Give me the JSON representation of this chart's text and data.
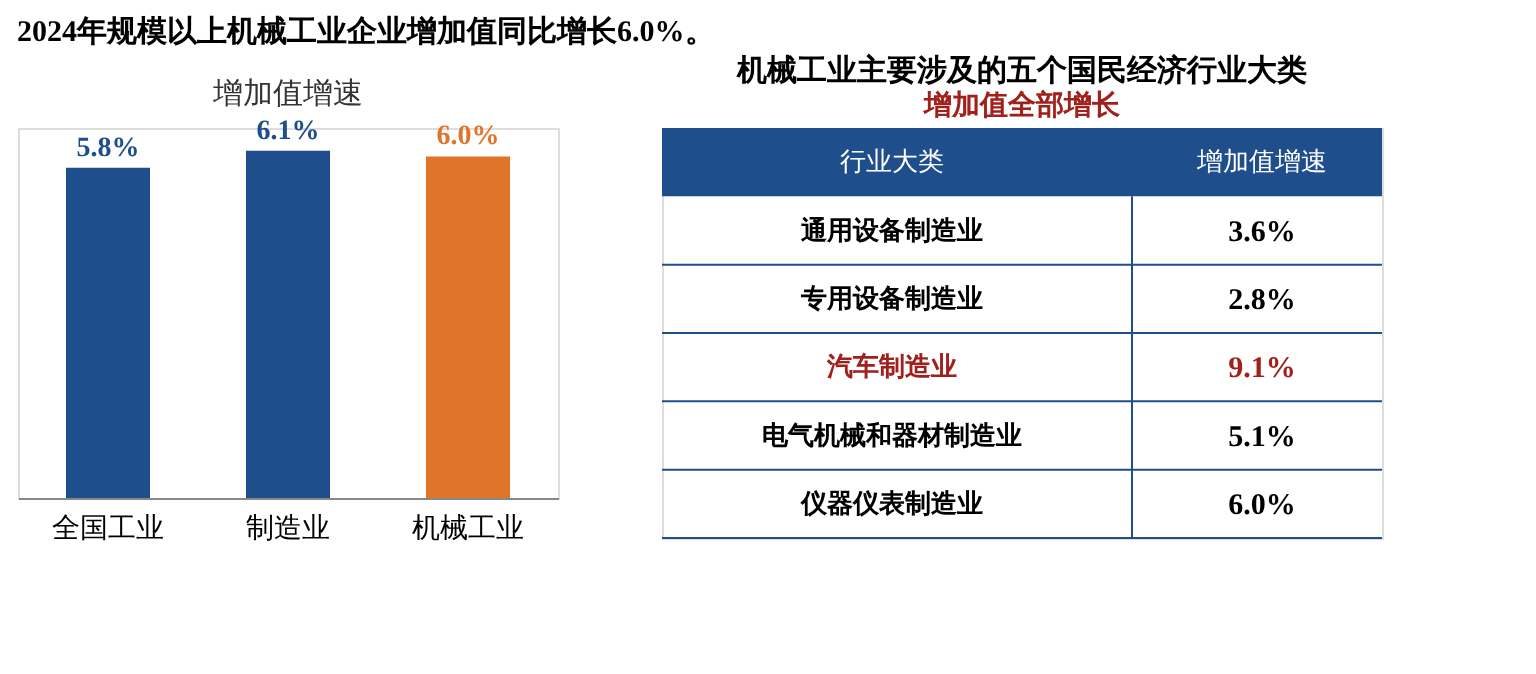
{
  "chart_data": [
    {
      "type": "bar",
      "title": "2024年规模以上机械工业企业增加值同比增长6.0%。",
      "subtitle": "增加值增速",
      "categories": [
        "全国工业",
        "制造业",
        "机械工业"
      ],
      "values": [
        5.8,
        6.1,
        6.0
      ],
      "colors": [
        "#1f4e8c",
        "#1f4e8c",
        "#e07428"
      ],
      "data_labels": true,
      "value_labels": [
        "5.8%",
        "6.1%",
        "6.0%"
      ]
    },
    {
      "type": "other",
      "title": "机械工业主要涉及的五个国民经济行业大类",
      "subtitle": "增加值全部增长",
      "xlabel": "行业大类",
      "ylabel": "增加值增速",
      "categories": [
        "通用设备制造业",
        "专用设备制造业",
        "汽车制造业",
        "电气机械和器材制造业",
        "仪器仪表制造业"
      ],
      "values": [
        3.6,
        2.8,
        9.1,
        5.1,
        6.0
      ],
      "value_labels": [
        "3.6%",
        "2.8%",
        "9.1%",
        "5.1%",
        "6.0%"
      ],
      "colors": [
        "#000000",
        "#000000",
        "#a0201c",
        "#000000",
        "#000000"
      ]
    }
  ]
}
